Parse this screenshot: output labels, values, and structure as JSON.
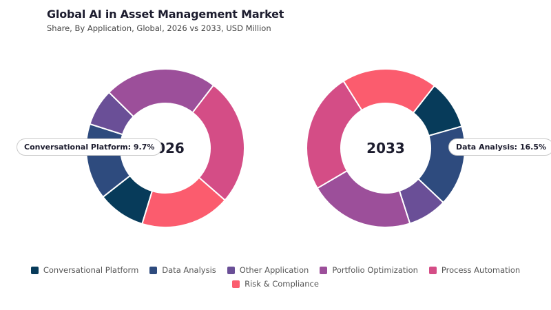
{
  "title": "Global AI in Asset Management Market",
  "subtitle": "Share, By Application, Global, 2026 vs 2033, USD Million",
  "chart_data": {
    "type": "pie",
    "variant": "donut",
    "categories": [
      "Conversational Platform",
      "Data Analysis",
      "Other Application",
      "Portfolio Optimization",
      "Process Automation",
      "Risk & Compliance"
    ],
    "colors": [
      "#073b5a",
      "#2e4b7e",
      "#6a4f97",
      "#9c4f9a",
      "#d44d86",
      "#fb5c6e"
    ],
    "series": [
      {
        "name": "2026",
        "values": [
          9.7,
          15.5,
          7.5,
          23.0,
          26.0,
          18.3
        ]
      },
      {
        "name": "2033",
        "values": [
          10.0,
          16.5,
          8.0,
          21.5,
          24.5,
          19.5
        ]
      }
    ],
    "callouts": [
      {
        "chart": 0,
        "text": "Conversational Platform: 9.7%"
      },
      {
        "chart": 1,
        "text": "Data Analysis: 16.5%"
      }
    ],
    "legend_position": "bottom"
  }
}
